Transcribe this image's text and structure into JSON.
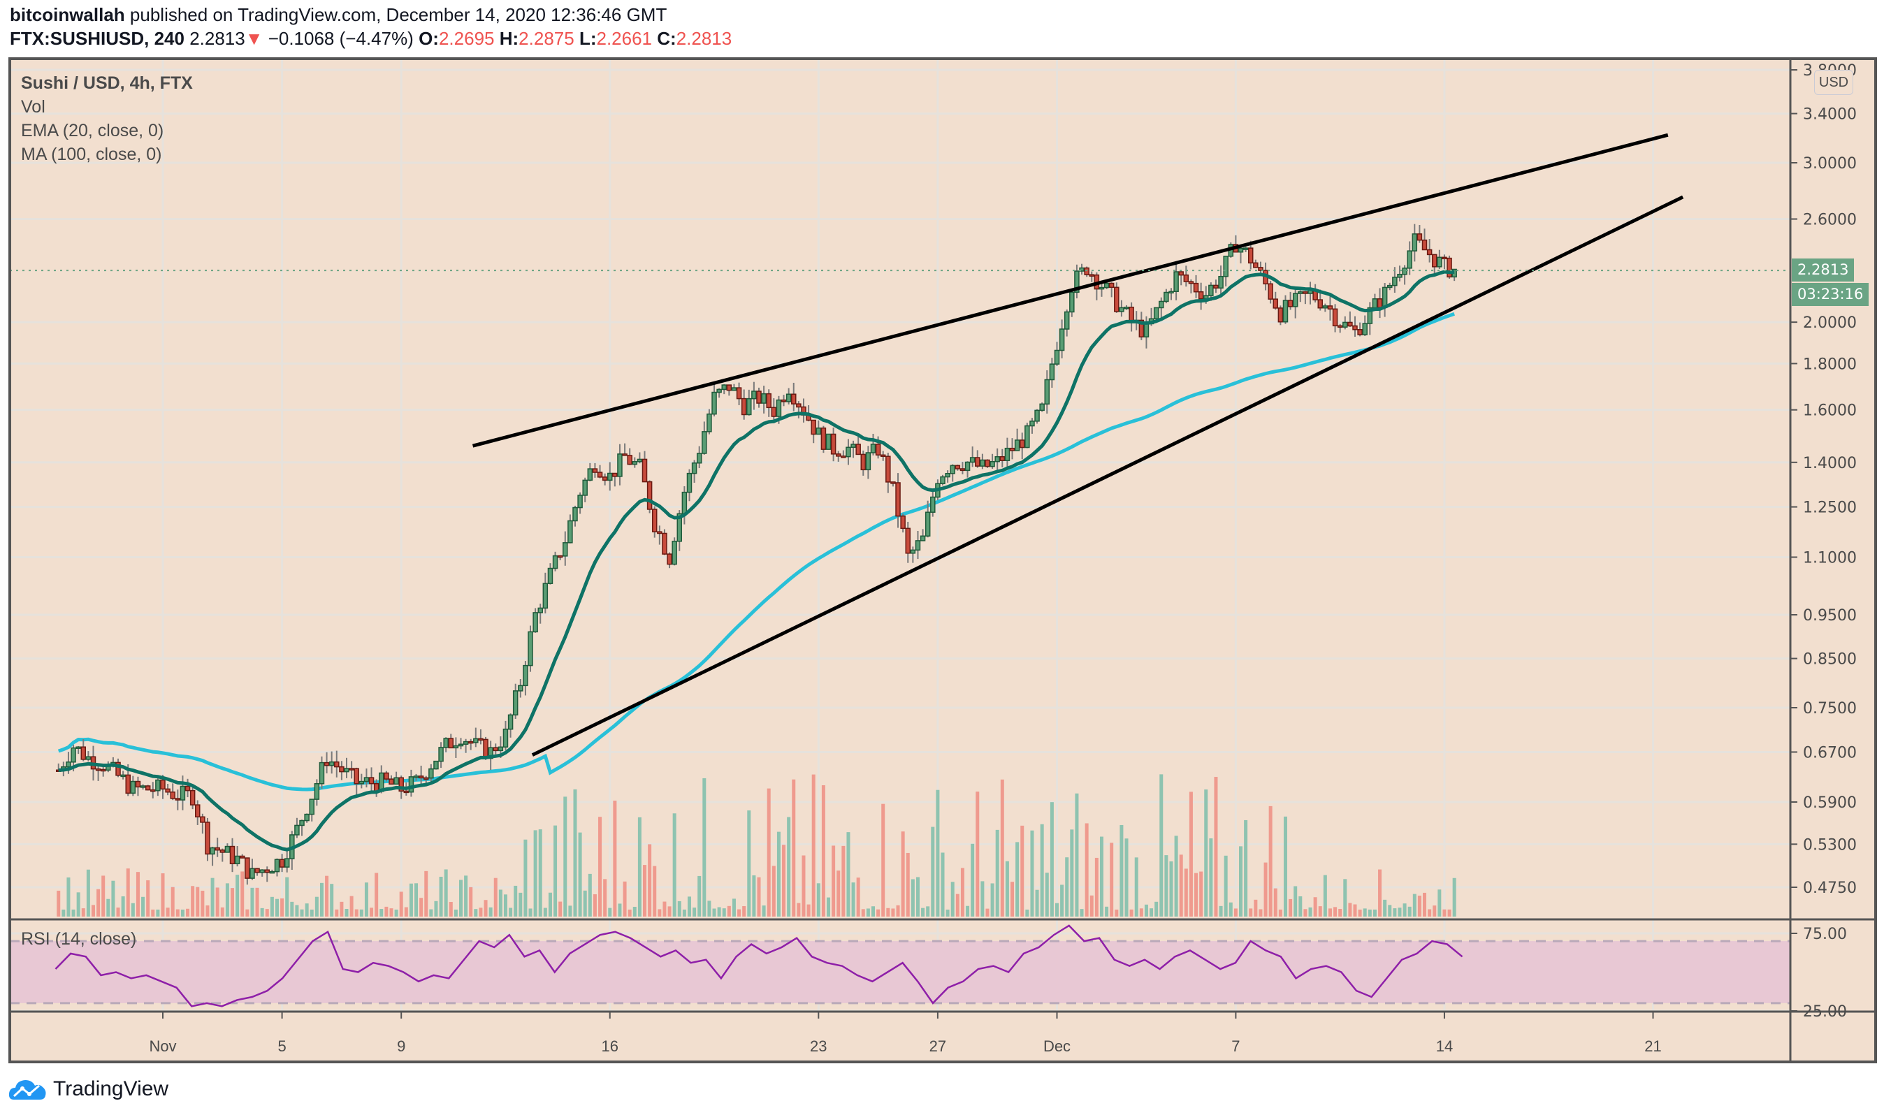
{
  "header": {
    "author": "bitcoinwallah",
    "published": " published on TradingView.com, December 14, 2020 12:36:46 GMT",
    "symbol": "FTX:SUSHIUSD, 240",
    "last": "2.2813",
    "arrow": "▼",
    "change": "−0.1068 (−4.47%)",
    "o_label": "O:",
    "o": "2.2695",
    "h_label": "H:",
    "h": "2.2875",
    "l_label": "L:",
    "l": "2.2661",
    "c_label": "C:",
    "c": "2.2813"
  },
  "legend": {
    "title": "Sushi / USD, 4h, FTX",
    "vol": "Vol",
    "ema": "EMA (20, close, 0)",
    "ma": "MA (100, close, 0)"
  },
  "rsi_label": "RSI (14, close)",
  "currency_button": "USD",
  "price_badge": "2.2813",
  "countdown_badge": "03:23:16",
  "footer": {
    "brand": "TradingView"
  },
  "colors": {
    "background": "#f2dfcf",
    "grid": "#e6e2dc",
    "up": "#5a9d74",
    "up_border": "#1f5a3a",
    "down": "#c84b3c",
    "down_border": "#6a1a12",
    "vol_up": "#8ec3b0",
    "vol_down": "#ef9a8e",
    "ema": "#0e7366",
    "ma": "#29c0d8",
    "rsi": "#8e1fa8",
    "rsi_band": "#e8c8d4",
    "trendline": "#000000",
    "badge": "#6aa484"
  },
  "chart_data": {
    "type": "candlestick",
    "title": "Sushi / USD, 4h, FTX",
    "symbol": "FTX:SUSHIUSD",
    "interval": "240",
    "y_scale": "log",
    "price_ticks": [
      3.8,
      3.4,
      3.0,
      2.6,
      2.0,
      1.8,
      1.6,
      1.4,
      1.25,
      1.1,
      0.95,
      0.85,
      0.75,
      0.67,
      0.59,
      0.53,
      0.475
    ],
    "rsi_ticks": [
      75,
      25
    ],
    "rsi_band": [
      30,
      70
    ],
    "time_ticks": [
      {
        "label": "Nov",
        "day": 0
      },
      {
        "label": "5",
        "day": 4
      },
      {
        "label": "9",
        "day": 8
      },
      {
        "label": "16",
        "day": 15
      },
      {
        "label": "23",
        "day": 22
      },
      {
        "label": "27",
        "day": 26
      },
      {
        "label": "Dec",
        "day": 30
      },
      {
        "label": "7",
        "day": 36
      },
      {
        "label": "14",
        "day": 43
      },
      {
        "label": "21",
        "day": 50
      }
    ],
    "last_price": 2.2813,
    "close_path_daily_approx": {
      "note": "approximate 4h closes sampled per ~day, start Oct 28",
      "days": [
        -3.5,
        -3,
        -2.5,
        -2,
        -1.5,
        -1,
        -0.5,
        0,
        0.5,
        1,
        1.5,
        2,
        2.5,
        3,
        3.5,
        4,
        4.5,
        5,
        5.5,
        6,
        6.5,
        7,
        7.5,
        8,
        8.5,
        9,
        9.5,
        10,
        10.5,
        11,
        11.5,
        12,
        12.5,
        13,
        13.5,
        14,
        14.5,
        15,
        15.5,
        16,
        16.5,
        17,
        17.5,
        18,
        18.5,
        19,
        19.5,
        20,
        20.5,
        21,
        21.5,
        22,
        22.5,
        23,
        23.5,
        24,
        24.5,
        25,
        25.5,
        26,
        26.5,
        27,
        27.5,
        28,
        28.5,
        29,
        29.5,
        30,
        30.5,
        31,
        31.5,
        32,
        32.5,
        33,
        33.5,
        34,
        34.5,
        35,
        35.5,
        36,
        36.5,
        37,
        37.5,
        38,
        38.5,
        39,
        39.5,
        40,
        40.5,
        41,
        41.5,
        42,
        42.5,
        43,
        43.5
      ],
      "close": [
        0.64,
        0.68,
        0.66,
        0.65,
        0.63,
        0.61,
        0.61,
        0.61,
        0.6,
        0.6,
        0.53,
        0.52,
        0.51,
        0.49,
        0.5,
        0.51,
        0.55,
        0.6,
        0.66,
        0.64,
        0.62,
        0.62,
        0.62,
        0.61,
        0.62,
        0.65,
        0.68,
        0.7,
        0.68,
        0.67,
        0.7,
        0.8,
        0.95,
        1.05,
        1.15,
        1.3,
        1.4,
        1.35,
        1.42,
        1.38,
        1.2,
        1.1,
        1.3,
        1.45,
        1.65,
        1.7,
        1.62,
        1.65,
        1.6,
        1.7,
        1.6,
        1.5,
        1.45,
        1.45,
        1.4,
        1.45,
        1.3,
        1.1,
        1.15,
        1.35,
        1.4,
        1.4,
        1.38,
        1.4,
        1.45,
        1.5,
        1.6,
        1.9,
        2.2,
        2.3,
        2.2,
        2.1,
        2.0,
        1.95,
        2.1,
        2.25,
        2.2,
        2.15,
        2.25,
        2.45,
        2.35,
        2.2,
        2.05,
        2.1,
        2.15,
        2.1,
        2.0,
        1.95,
        2.05,
        2.15,
        2.3,
        2.45,
        2.38,
        2.3,
        2.28
      ]
    },
    "ema20_approx": {
      "start": 0.62,
      "end": 2.16
    },
    "ma100_approx": {
      "start": 0.67,
      "end": 2.02
    },
    "trendlines": [
      {
        "name": "upper",
        "from": {
          "day": 10.4,
          "price": 1.46
        },
        "to": {
          "day": 50.5,
          "price": 3.22
        }
      },
      {
        "name": "lower",
        "from": {
          "day": 12.4,
          "price": 0.665
        },
        "to": {
          "day": 51.0,
          "price": 2.75
        }
      }
    ],
    "rsi_approx": [
      52,
      62,
      60,
      48,
      50,
      46,
      48,
      44,
      40,
      28,
      30,
      28,
      32,
      34,
      38,
      46,
      58,
      70,
      76,
      52,
      50,
      56,
      54,
      50,
      44,
      48,
      46,
      58,
      70,
      66,
      74,
      60,
      64,
      50,
      62,
      68,
      74,
      76,
      72,
      66,
      60,
      64,
      56,
      58,
      46,
      60,
      68,
      62,
      66,
      72,
      60,
      56,
      54,
      48,
      44,
      50,
      56,
      44,
      30,
      40,
      44,
      52,
      54,
      50,
      62,
      66,
      74,
      80,
      70,
      72,
      58,
      54,
      58,
      52,
      60,
      64,
      58,
      52,
      56,
      70,
      64,
      60,
      46,
      52,
      54,
      50,
      38,
      34,
      46,
      58,
      62,
      70,
      68,
      60
    ]
  }
}
